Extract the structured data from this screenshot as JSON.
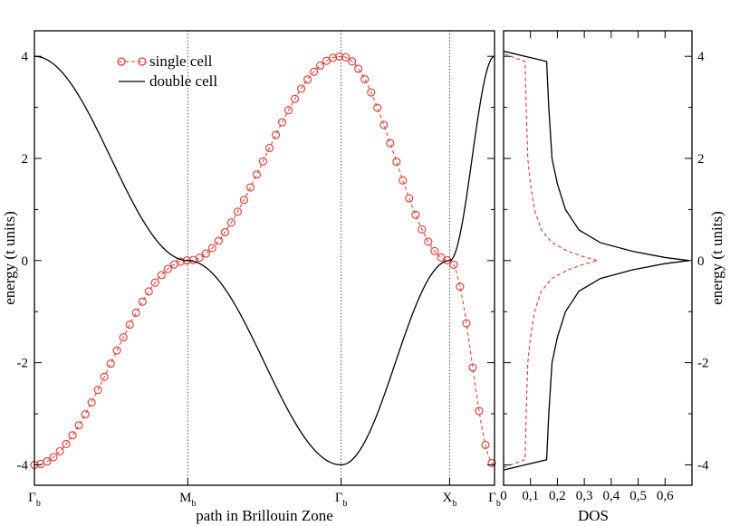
{
  "chart_data": [
    {
      "type": "line",
      "xlabel": "path in Brillouin Zone",
      "ylabel": "energy (t units)",
      "ylim": [
        -4.4,
        4.5
      ],
      "xlim": [
        0,
        3
      ],
      "yticks": [
        "4",
        "2",
        "0",
        "-2",
        "-4"
      ],
      "ytick_values": [
        4,
        2,
        0,
        -2,
        -4
      ],
      "xticks": [
        {
          "label": "Γ",
          "sub": "b",
          "x": 0
        },
        {
          "label": "M",
          "sub": "b",
          "x": 1
        },
        {
          "label": "Γ",
          "sub": "b",
          "x": 2
        },
        {
          "label": "X",
          "sub": "b",
          "x": 2.7071
        },
        {
          "label": "Γ",
          "sub": "b",
          "x": 3
        }
      ],
      "vertical_dotted_lines_at_x": [
        1,
        2,
        2.7071
      ],
      "legend": {
        "placement": "top-left",
        "entries": [
          "single cell",
          "double cell"
        ]
      },
      "series": [
        {
          "name": "single cell",
          "color": "#e8332a",
          "style": "dashed-with-circle-markers",
          "formula": "E = -2cos(kx) - 2cos(ky) along the path",
          "marker_spacing_x": 0.04142,
          "key_points": [
            {
              "x": 0,
              "y": -4
            },
            {
              "x": 1,
              "y": 0
            },
            {
              "x": 2,
              "y": 4
            },
            {
              "x": 2.7071,
              "y": 0
            },
            {
              "x": 3,
              "y": -4
            }
          ]
        },
        {
          "name": "double cell",
          "color": "#000000",
          "style": "solid",
          "formula": "two bands folded at M",
          "key_points": [
            {
              "x": 0,
              "y": 4
            },
            {
              "x": 1,
              "y": 0
            },
            {
              "x": 2,
              "y": -4
            },
            {
              "x": 2.7071,
              "y": 0
            },
            {
              "x": 3,
              "y": 4
            }
          ]
        }
      ]
    },
    {
      "type": "line",
      "xlabel": "DOS",
      "ylabel": "energy (t units)",
      "xlim": [
        0,
        0.7
      ],
      "ylim": [
        -4.4,
        4.5
      ],
      "xticks": [
        "0",
        "0,1",
        "0,2",
        "0,3",
        "0,4",
        "0,5",
        "0,6"
      ],
      "xtick_values": [
        0,
        0.1,
        0.2,
        0.3,
        0.4,
        0.5,
        0.6
      ],
      "yticks": [
        "4",
        "2",
        "0",
        "-2",
        "-4"
      ],
      "ytick_values": [
        4,
        2,
        0,
        -2,
        -4
      ],
      "series": [
        {
          "name": "single cell",
          "color": "#e8332a",
          "style": "dashed",
          "points": [
            [
              0.0,
              -4.05
            ],
            [
              0.08,
              -3.9
            ],
            [
              0.084,
              -3.0
            ],
            [
              0.09,
              -2.0
            ],
            [
              0.1,
              -1.5
            ],
            [
              0.115,
              -1.0
            ],
            [
              0.14,
              -0.6
            ],
            [
              0.18,
              -0.35
            ],
            [
              0.24,
              -0.18
            ],
            [
              0.3,
              -0.07
            ],
            [
              0.35,
              0.0
            ],
            [
              0.3,
              0.07
            ],
            [
              0.24,
              0.18
            ],
            [
              0.18,
              0.35
            ],
            [
              0.14,
              0.6
            ],
            [
              0.115,
              1.0
            ],
            [
              0.1,
              1.5
            ],
            [
              0.09,
              2.0
            ],
            [
              0.084,
              3.0
            ],
            [
              0.08,
              3.9
            ],
            [
              0.0,
              4.05
            ]
          ]
        },
        {
          "name": "double cell",
          "color": "#000000",
          "style": "solid",
          "points": [
            [
              0.0,
              -4.1
            ],
            [
              0.16,
              -3.9
            ],
            [
              0.168,
              -3.0
            ],
            [
              0.18,
              -2.0
            ],
            [
              0.2,
              -1.5
            ],
            [
              0.23,
              -1.0
            ],
            [
              0.28,
              -0.6
            ],
            [
              0.36,
              -0.35
            ],
            [
              0.48,
              -0.18
            ],
            [
              0.6,
              -0.06
            ],
            [
              0.69,
              0.0
            ],
            [
              0.6,
              0.06
            ],
            [
              0.48,
              0.18
            ],
            [
              0.36,
              0.35
            ],
            [
              0.28,
              0.6
            ],
            [
              0.23,
              1.0
            ],
            [
              0.2,
              1.5
            ],
            [
              0.18,
              2.0
            ],
            [
              0.168,
              3.0
            ],
            [
              0.16,
              3.9
            ],
            [
              0.0,
              4.1
            ]
          ]
        }
      ]
    }
  ]
}
